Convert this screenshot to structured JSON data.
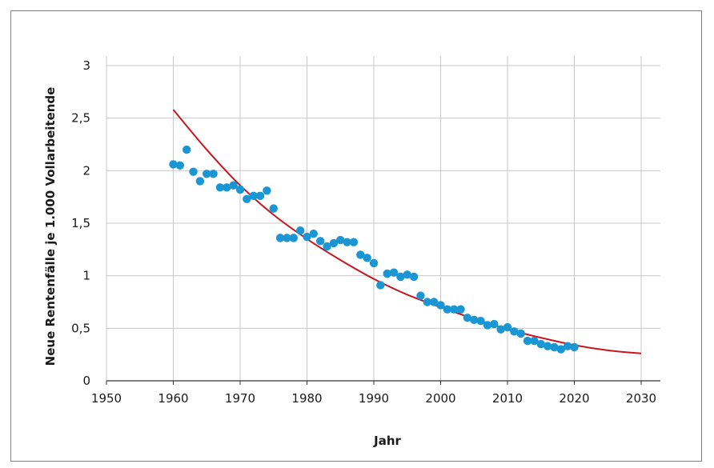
{
  "chart_data": {
    "type": "scatter",
    "xlabel": "Jahr",
    "ylabel": "Neue Rentenfälle je 1.000 Vollarbeitende",
    "xlim": [
      1950,
      2030
    ],
    "ylim": [
      0,
      3
    ],
    "x_ticks": [
      1950,
      1960,
      1970,
      1980,
      1990,
      2000,
      2010,
      2020,
      2030
    ],
    "x_tick_labels": [
      "1950",
      "1960",
      "1970",
      "1980",
      "1990",
      "2000",
      "2010",
      "2020",
      "2030"
    ],
    "y_ticks": [
      0,
      0.5,
      1,
      1.5,
      2,
      2.5,
      3
    ],
    "y_tick_labels": [
      "0",
      "0,5",
      "1",
      "1,5",
      "2",
      "2,5",
      "3"
    ],
    "grid": true,
    "series": [
      {
        "type": "scatter",
        "color": "#1a96d4",
        "points": [
          [
            1960,
            2.06
          ],
          [
            1961,
            2.05
          ],
          [
            1962,
            2.2
          ],
          [
            1963,
            1.99
          ],
          [
            1964,
            1.9
          ],
          [
            1965,
            1.97
          ],
          [
            1966,
            1.97
          ],
          [
            1967,
            1.84
          ],
          [
            1968,
            1.84
          ],
          [
            1969,
            1.86
          ],
          [
            1970,
            1.82
          ],
          [
            1971,
            1.73
          ],
          [
            1972,
            1.76
          ],
          [
            1973,
            1.76
          ],
          [
            1974,
            1.81
          ],
          [
            1975,
            1.64
          ],
          [
            1976,
            1.36
          ],
          [
            1977,
            1.36
          ],
          [
            1978,
            1.36
          ],
          [
            1979,
            1.43
          ],
          [
            1980,
            1.37
          ],
          [
            1981,
            1.4
          ],
          [
            1982,
            1.33
          ],
          [
            1983,
            1.28
          ],
          [
            1984,
            1.31
          ],
          [
            1985,
            1.34
          ],
          [
            1986,
            1.32
          ],
          [
            1987,
            1.32
          ],
          [
            1988,
            1.2
          ],
          [
            1989,
            1.17
          ],
          [
            1990,
            1.12
          ],
          [
            1991,
            0.91
          ],
          [
            1992,
            1.02
          ],
          [
            1993,
            1.03
          ],
          [
            1994,
            0.99
          ],
          [
            1995,
            1.01
          ],
          [
            1996,
            0.99
          ],
          [
            1997,
            0.81
          ],
          [
            1998,
            0.75
          ],
          [
            1999,
            0.75
          ],
          [
            2000,
            0.72
          ],
          [
            2001,
            0.68
          ],
          [
            2002,
            0.68
          ],
          [
            2003,
            0.68
          ],
          [
            2004,
            0.6
          ],
          [
            2005,
            0.58
          ],
          [
            2006,
            0.57
          ],
          [
            2007,
            0.53
          ],
          [
            2008,
            0.54
          ],
          [
            2009,
            0.49
          ],
          [
            2010,
            0.51
          ],
          [
            2011,
            0.47
          ],
          [
            2012,
            0.45
          ],
          [
            2013,
            0.38
          ],
          [
            2014,
            0.38
          ],
          [
            2015,
            0.35
          ],
          [
            2016,
            0.33
          ],
          [
            2017,
            0.32
          ],
          [
            2018,
            0.3
          ],
          [
            2019,
            0.33
          ],
          [
            2020,
            0.32
          ]
        ]
      },
      {
        "type": "line",
        "color": "#c8161d",
        "x": [
          1960,
          1965,
          1970,
          1975,
          1980,
          1985,
          1990,
          1995,
          2000,
          2005,
          2010,
          2015,
          2020,
          2025,
          2030
        ],
        "y": [
          2.58,
          2.2,
          1.86,
          1.58,
          1.35,
          1.15,
          0.97,
          0.82,
          0.7,
          0.59,
          0.49,
          0.41,
          0.34,
          0.29,
          0.26
        ]
      }
    ]
  }
}
